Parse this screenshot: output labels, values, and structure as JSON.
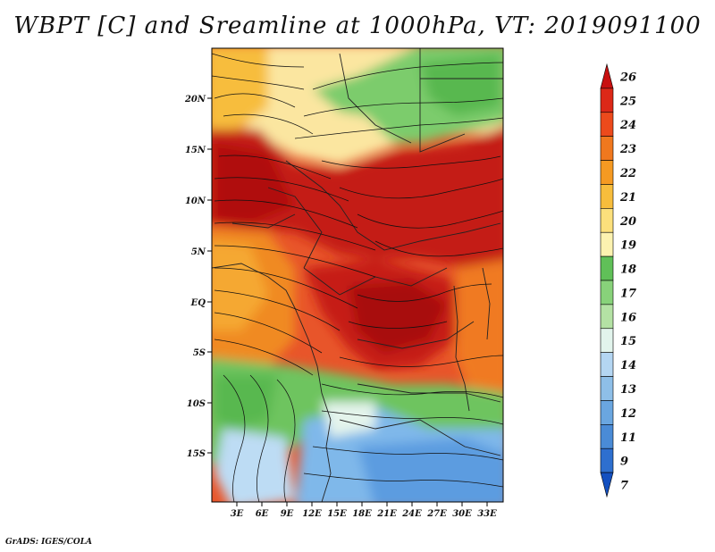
{
  "title": "WBPT [C] and Sreamline at 1000hPa, VT: 2019091100",
  "footer": "GrADS: IGES/COLA",
  "lat_ticks": [
    "20N",
    "15N",
    "10N",
    "5N",
    "EQ",
    "5S",
    "10S",
    "15S"
  ],
  "lon_ticks": [
    "3E",
    "6E",
    "9E",
    "12E",
    "15E",
    "18E",
    "21E",
    "24E",
    "27E",
    "30E",
    "33E"
  ],
  "colorbar": {
    "levels": [
      "26",
      "25",
      "24",
      "23",
      "22",
      "21",
      "20",
      "19",
      "18",
      "17",
      "16",
      "15",
      "14",
      "13",
      "12",
      "11",
      "9",
      "7"
    ],
    "colors": [
      "#c81010",
      "#dc2818",
      "#ec4a1c",
      "#f0781e",
      "#f59a22",
      "#f7bd3c",
      "#fce07c",
      "#fcf2b0",
      "#60c058",
      "#88d27a",
      "#b4e2a4",
      "#e2f4ec",
      "#b4d6f2",
      "#8ebfe8",
      "#6aa6e0",
      "#4a8bd6",
      "#2e6fcf",
      "#1450c0"
    ]
  }
}
